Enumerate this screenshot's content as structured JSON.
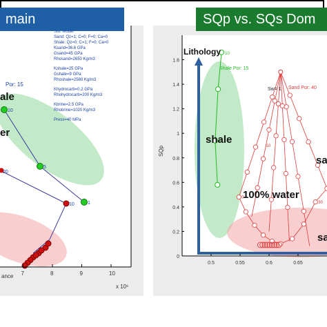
{
  "left_panel": {
    "title": "main",
    "model_text": [
      "Sand: Qz=1; C=0; F=0; Ca=0",
      "Shale: Qz=0; C=1; F=0; Ca=0",
      "Ksand=36.6 GPa",
      "Gsand=45 GPa",
      "Rhosand=2650 Kg/m3",
      "Kshale=25 GPa",
      "Gshale=9 GPa",
      "Rhoshale=2580 Kg/m3",
      "Khydrocarb=0.2 GPa",
      "Rhohydrocarb=200 Kg/m3",
      "Kbrine=2.5 GPa",
      "Rhobrine=1020 Kg/m3",
      "Press=40 MPa"
    ],
    "model_header": "Std. Model"
  },
  "right_panel": {
    "title": "SQp vs. SQs Dom"
  },
  "chart_data": [
    {
      "type": "scatter",
      "title": "",
      "xlabel": "ance",
      "ylabel": "",
      "x_ticks": [
        "7",
        "8",
        "9",
        "10"
      ],
      "x_multiplier": "x 10⁶",
      "annotations": [
        "Por: 15",
        "ale",
        "er",
        "Sw=1"
      ],
      "point_labels": [
        "10",
        "5",
        "1",
        "20",
        "10"
      ],
      "series": [
        {
          "name": "shale",
          "color": "#22bb22",
          "x": [
            6.5,
            7.7,
            9.2
          ],
          "y": [
            10,
            5,
            1
          ]
        },
        {
          "name": "sand",
          "color": "#d11c1c",
          "x": [
            8.6,
            7.15,
            7.2,
            7.3,
            7.5
          ],
          "y": [
            10,
            15,
            18,
            20,
            22
          ]
        }
      ]
    },
    {
      "type": "scatter",
      "title": "",
      "xlabel": "",
      "ylabel": "SQp",
      "xlim": [
        0.45,
        0.7
      ],
      "ylim": [
        0,
        1.8
      ],
      "x_ticks": [
        "0.5",
        "0.55",
        "0.6",
        "0.65"
      ],
      "y_ticks": [
        "0",
        "0.2",
        "0.4",
        "0.6",
        "0.8",
        "1",
        "1.2",
        "1.4",
        "1.6"
      ],
      "annotations": [
        "Lithology",
        "Shale Por: 15",
        "Sw= 1",
        "Sand Por: 40",
        "shale",
        "100% water",
        "sa",
        "sa"
      ],
      "point_labels": [
        "10",
        "5",
        "1",
        "0",
        "10",
        "30"
      ],
      "series": [
        {
          "name": "Shale Por: 15",
          "color": "#22bb22",
          "x": [
            0.518,
            0.512,
            0.507,
            0.511
          ],
          "y": [
            1.66,
            1.36,
            0.94,
            0.58
          ]
        },
        {
          "name": "Sand Por: 40",
          "color": "#e03a3a",
          "x": [
            0.62,
            0.598,
            0.585,
            0.57,
            0.555,
            0.54,
            0.56,
            0.6,
            0.64,
            0.67
          ],
          "y": [
            1.5,
            1.3,
            1.0,
            0.6,
            0.3,
            0.45,
            0.32,
            0.15,
            0.9,
            0.5
          ]
        }
      ]
    }
  ]
}
